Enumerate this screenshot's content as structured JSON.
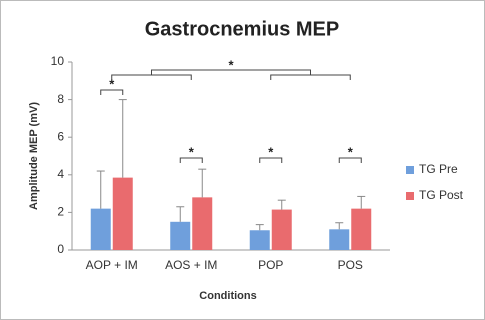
{
  "chart_data": {
    "type": "bar",
    "title": "Gastrocnemius MEP",
    "x_label": "Conditions",
    "y_label": "Amplitude MEP (mV)",
    "categories": [
      "AOP + IM",
      "AOS + IM",
      "POP",
      "POS"
    ],
    "series": [
      {
        "name": "TG Pre",
        "color": "#6f9fdc",
        "values": [
          2.2,
          1.5,
          1.05,
          1.1
        ],
        "errors": [
          2.0,
          0.8,
          0.3,
          0.35
        ]
      },
      {
        "name": "TG Post",
        "color": "#e96b6e",
        "values": [
          3.85,
          2.8,
          2.15,
          2.2
        ],
        "errors": [
          4.15,
          1.5,
          0.5,
          0.65
        ]
      }
    ],
    "ylim": [
      0,
      10
    ],
    "yticks": [
      0,
      2,
      4,
      6,
      8,
      10
    ],
    "annotations": [
      "*",
      "*",
      "*",
      "*",
      "*"
    ],
    "legend": "right"
  }
}
